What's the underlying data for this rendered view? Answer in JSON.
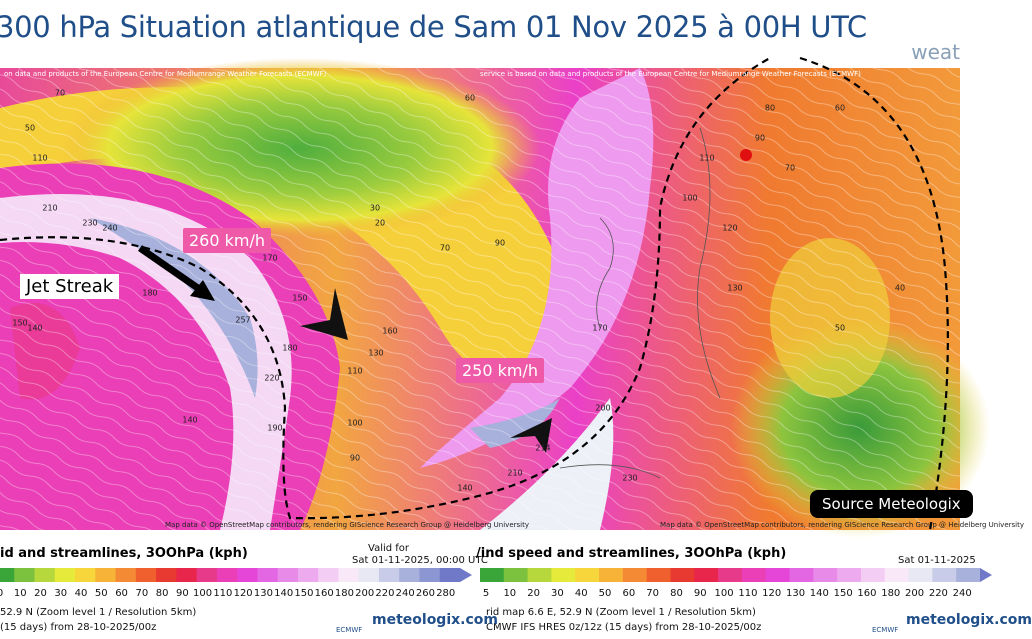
{
  "header": {
    "title": "300 hPa Situation atlantique de Sam 01 Nov 2025 à 00H UTC",
    "logo": "weat"
  },
  "map": {
    "attribution_top_left": "on data and products of the European Centre for Mediumrange Weather Forecasts (ECMWF)",
    "attribution_top_right": "service is based on data and products of the European Centre for Mediumrange Weather Forecasts (ECMWF)",
    "attribution_bottom_left": "Map data © OpenStreetMap contributors, rendering GIScience Research Group @ Heidelberg University",
    "attribution_bottom_right": "Map data © OpenStreetMap contributors, rendering GIScience Research Group @ Heidelberg University",
    "annotations": [
      "260 km/h",
      "250 km/h",
      "Jet Streak"
    ],
    "source": "Source Meteologix",
    "labels": [
      "50",
      "70",
      "110",
      "210",
      "230",
      "240",
      "180",
      "150",
      "140",
      "257",
      "170",
      "180",
      "220",
      "190",
      "140",
      "110",
      "100",
      "90",
      "20",
      "30",
      "60",
      "70",
      "90",
      "160",
      "150",
      "130",
      "200",
      "170",
      "214",
      "210",
      "230",
      "140",
      "120",
      "110",
      "100",
      "90",
      "80",
      "70",
      "60",
      "40",
      "50",
      "130"
    ]
  },
  "legend": {
    "left": {
      "title": "id and streamlines, 3OOhPa (kph)",
      "scale": [
        "0",
        "10",
        "20",
        "30",
        "40",
        "50",
        "60",
        "70",
        "80",
        "90",
        "100",
        "110",
        "120",
        "130",
        "140",
        "150",
        "160",
        "180",
        "200",
        "220",
        "240",
        "260",
        "280"
      ],
      "line1": "52.9 N (Zoom level 1 / Resolution 5km)",
      "line2": "(15 days) from 28-10-2025/00z"
    },
    "valid_label": "Valid for",
    "valid_time": "Sat 01-11-2025, 00:00 UTC",
    "right": {
      "title": "/ind speed and streamlines, 3OOhPa (kph)",
      "time": "Sat 01-11-2025",
      "scale": [
        "5",
        "10",
        "20",
        "30",
        "40",
        "50",
        "60",
        "70",
        "80",
        "90",
        "100",
        "110",
        "120",
        "130",
        "140",
        "150",
        "160",
        "180",
        "200",
        "220",
        "240"
      ],
      "line1": "rid map 6.6 E, 52.9 N (Zoom level 1 / Resolution 5km)",
      "line2": "CMWF IFS HRES 0z/12z (15 days) from 28-10-2025/00z"
    },
    "colors": [
      "#3aa63a",
      "#7cc23e",
      "#b7d83c",
      "#e6ea3a",
      "#f6d63a",
      "#f7b338",
      "#f58a35",
      "#f0602f",
      "#e83a30",
      "#e8254a",
      "#e83a8a",
      "#ea3fb6",
      "#e646d8",
      "#e366e2",
      "#e88ae8",
      "#eeaaee",
      "#f4cdf4",
      "#f8e8f8",
      "#e8e8f4",
      "#c8cce8",
      "#a8b0dc",
      "#8c96d2",
      "#7078c8"
    ],
    "ecmwf": "ECMWF",
    "brand": "meteologix.com"
  }
}
